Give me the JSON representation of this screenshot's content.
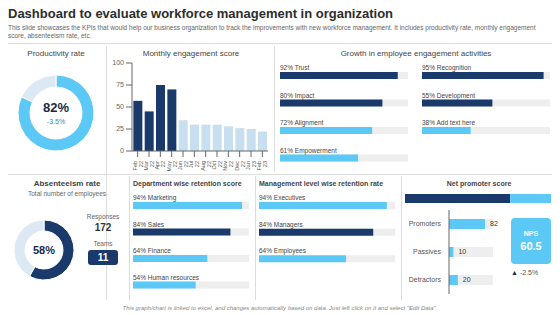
{
  "title": "Dashboard to evaluate workforce management in organization",
  "subtitle": "This slide showcases the KPIs that would help our business organization to track the improvements with new workforce management. It includes productivity rate, monthly engagement score, absenteeism rate, etc.",
  "annotations": [
    "This graph/chart is linked to excel, and changes automatically based on data. Just left click on it and select \"Edit Data\"."
  ],
  "chart_data": [
    {
      "type": "pie",
      "title": "Productivity rate",
      "values": [
        82,
        18
      ],
      "value_labels": [
        "82%",
        null
      ],
      "colors": [
        "#5bc8f5",
        "#dce9f5"
      ],
      "annotations": [
        "-3.5%"
      ]
    },
    {
      "type": "bar",
      "title": "Monthly engagement score",
      "categories": [
        "Feb\n22",
        "Mar\n22",
        "Apr\n22",
        "May\n22",
        "Jun\n22",
        "Jul\n22",
        "Aug\n22",
        "Oct\n22",
        "Nov\n22",
        "Dec\n22",
        "Jan\n23",
        "Feb\n23"
      ],
      "values": [
        57,
        45,
        75,
        70,
        35,
        30,
        30,
        30,
        28,
        26,
        25,
        22
      ],
      "colors": [
        "#1a3a6c",
        "#1a3a6c",
        "#1a3a6c",
        "#1a3a6c",
        "#c8dff0",
        "#c8dff0",
        "#c8dff0",
        "#c8dff0",
        "#c8dff0",
        "#c8dff0",
        "#c8dff0",
        "#c8dff0"
      ],
      "ylim": [
        0,
        100
      ],
      "yticks": [
        0,
        25,
        50,
        75,
        100
      ],
      "grid": false
    },
    {
      "type": "bar",
      "orientation": "horizontal",
      "title": "Growth in employee engagement activities",
      "categories": [
        "92%  Trust",
        "80%  Impact",
        "72%  Alignment",
        "61%  Empowerment"
      ],
      "values": [
        92,
        80,
        72,
        61
      ],
      "colors": [
        "#1a3a6c",
        "#1a3a6c",
        "#5bc8f5",
        "#5bc8f5"
      ],
      "xlim": [
        0,
        100
      ],
      "tick_labels": false
    },
    {
      "type": "bar",
      "orientation": "horizontal",
      "categories": [
        "95% Recognition",
        "55%  Development",
        "38%  Add text here"
      ],
      "values": [
        95,
        55,
        38
      ],
      "colors": [
        "#1a3a6c",
        "#1a3a6c",
        "#5bc8f5"
      ],
      "xlim": [
        0,
        100
      ],
      "tick_labels": false
    },
    {
      "type": "pie",
      "title": "Absenteeism rate",
      "subtitle": "Total number of employees",
      "values": [
        58,
        42
      ],
      "value_labels": [
        "58%",
        null
      ],
      "colors": [
        "#1a3a6c",
        "#dce9f5"
      ],
      "annotations": [
        "Responses",
        "172",
        "Teams",
        "11"
      ]
    },
    {
      "type": "bar",
      "orientation": "horizontal",
      "title": "Department wise retention score",
      "categories": [
        "94%  Marketing",
        "84%  Sales",
        "64%  Finance",
        "54%  Human resources"
      ],
      "values": [
        94,
        84,
        64,
        54
      ],
      "colors": [
        "#5bc8f5",
        "#1a3a6c",
        "#5bc8f5",
        "#5bc8f5"
      ],
      "xlim": [
        0,
        100
      ],
      "tick_labels": false
    },
    {
      "type": "bar",
      "orientation": "horizontal",
      "title": "Management level wise retention rate",
      "categories": [
        "94%  Executives",
        "84%  Managers",
        "64%  Employees"
      ],
      "values": [
        94,
        84,
        64
      ],
      "colors": [
        "#5bc8f5",
        "#1a3a6c",
        "#5bc8f5"
      ],
      "xlim": [
        0,
        100
      ],
      "tick_labels": false
    },
    {
      "type": "bar",
      "orientation": "horizontal",
      "title": "Net promoter score",
      "categories": [
        "Promoters",
        "Passives",
        "Detractors"
      ],
      "values": [
        82,
        10,
        20
      ],
      "color": "#5bc8f5",
      "xlim": [
        0,
        100
      ],
      "data_labels": true,
      "tick_labels": "y",
      "annotations": [
        "NPS",
        "60.5",
        "▲",
        "-2.5%"
      ]
    },
    {
      "type": "bar",
      "orientation": "horizontal",
      "stacked": true,
      "categories": [
        null
      ],
      "series": [
        {
          "color": "#1a3a6c",
          "values": [
            72
          ]
        },
        {
          "color": "#5bc8f5",
          "values": [
            28
          ]
        }
      ],
      "xlim": [
        0,
        100
      ],
      "tick_labels": false
    }
  ]
}
